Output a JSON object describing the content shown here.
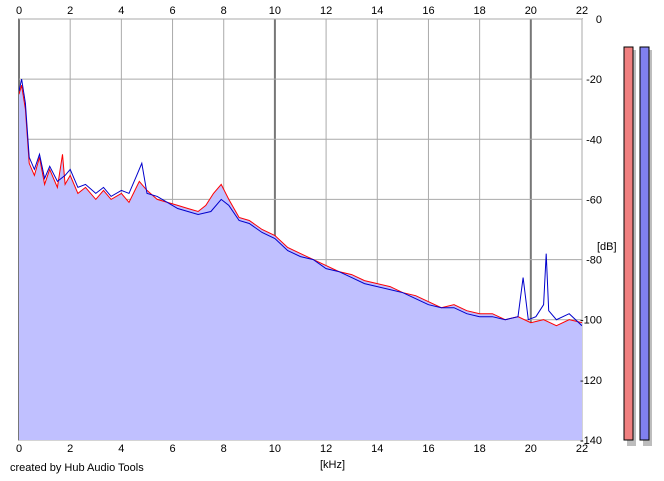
{
  "chart_data": {
    "type": "line",
    "xlabel": "[kHz]",
    "ylabel": "[dB]",
    "x_ticks": [
      "0",
      "2",
      "4",
      "6",
      "8",
      "10",
      "12",
      "14",
      "16",
      "18",
      "20",
      "22"
    ],
    "y_ticks": [
      "0",
      "-20",
      "-40",
      "-60",
      "-80",
      "-100",
      "-120",
      "-140"
    ],
    "xlim": [
      0,
      22
    ],
    "ylim": [
      -140,
      0
    ],
    "grid": true,
    "fill_color": "#c0c0ff",
    "series": [
      {
        "color": "#ff0000",
        "points": [
          [
            0,
            -25
          ],
          [
            0.1,
            -22
          ],
          [
            0.25,
            -30
          ],
          [
            0.4,
            -48
          ],
          [
            0.6,
            -52
          ],
          [
            0.8,
            -46
          ],
          [
            1,
            -55
          ],
          [
            1.2,
            -50
          ],
          [
            1.5,
            -56
          ],
          [
            1.7,
            -45
          ],
          [
            1.8,
            -55
          ],
          [
            2,
            -52
          ],
          [
            2.3,
            -58
          ],
          [
            2.6,
            -56
          ],
          [
            3,
            -60
          ],
          [
            3.3,
            -57
          ],
          [
            3.6,
            -60
          ],
          [
            4,
            -58
          ],
          [
            4.3,
            -61
          ],
          [
            4.7,
            -54
          ],
          [
            5,
            -57
          ],
          [
            5.4,
            -60
          ],
          [
            5.8,
            -61
          ],
          [
            6.2,
            -62
          ],
          [
            6.6,
            -63
          ],
          [
            7,
            -64
          ],
          [
            7.3,
            -62
          ],
          [
            7.6,
            -58
          ],
          [
            7.9,
            -55
          ],
          [
            8.2,
            -60
          ],
          [
            8.6,
            -66
          ],
          [
            9,
            -67
          ],
          [
            9.5,
            -70
          ],
          [
            10,
            -72
          ],
          [
            10.5,
            -76
          ],
          [
            11,
            -78
          ],
          [
            11.5,
            -80
          ],
          [
            12,
            -82
          ],
          [
            12.5,
            -84
          ],
          [
            13,
            -85
          ],
          [
            13.5,
            -87
          ],
          [
            14,
            -88
          ],
          [
            14.5,
            -89
          ],
          [
            15,
            -91
          ],
          [
            15.5,
            -92
          ],
          [
            16,
            -94
          ],
          [
            16.5,
            -96
          ],
          [
            17,
            -95
          ],
          [
            17.5,
            -97
          ],
          [
            18,
            -98
          ],
          [
            18.5,
            -98
          ],
          [
            19,
            -100
          ],
          [
            19.5,
            -99
          ],
          [
            20,
            -101
          ],
          [
            20.5,
            -100
          ],
          [
            21,
            -102
          ],
          [
            21.5,
            -100
          ],
          [
            22,
            -101
          ]
        ]
      },
      {
        "color": "#0000cc",
        "points": [
          [
            0,
            -24
          ],
          [
            0.1,
            -20
          ],
          [
            0.25,
            -28
          ],
          [
            0.4,
            -46
          ],
          [
            0.6,
            -50
          ],
          [
            0.8,
            -45
          ],
          [
            1,
            -53
          ],
          [
            1.2,
            -49
          ],
          [
            1.5,
            -54
          ],
          [
            1.8,
            -52
          ],
          [
            2,
            -50
          ],
          [
            2.3,
            -56
          ],
          [
            2.6,
            -55
          ],
          [
            3,
            -58
          ],
          [
            3.3,
            -56
          ],
          [
            3.6,
            -59
          ],
          [
            4,
            -57
          ],
          [
            4.3,
            -58
          ],
          [
            4.6,
            -52
          ],
          [
            4.8,
            -48
          ],
          [
            5,
            -58
          ],
          [
            5.4,
            -59
          ],
          [
            5.8,
            -61
          ],
          [
            6.2,
            -63
          ],
          [
            6.6,
            -64
          ],
          [
            7,
            -65
          ],
          [
            7.5,
            -64
          ],
          [
            7.9,
            -60
          ],
          [
            8.2,
            -62
          ],
          [
            8.6,
            -67
          ],
          [
            9,
            -68
          ],
          [
            9.5,
            -71
          ],
          [
            10,
            -73
          ],
          [
            10.5,
            -77
          ],
          [
            11,
            -79
          ],
          [
            11.5,
            -80
          ],
          [
            12,
            -83
          ],
          [
            12.5,
            -84
          ],
          [
            13,
            -86
          ],
          [
            13.5,
            -88
          ],
          [
            14,
            -89
          ],
          [
            14.5,
            -90
          ],
          [
            15,
            -91
          ],
          [
            15.5,
            -93
          ],
          [
            16,
            -95
          ],
          [
            16.5,
            -96
          ],
          [
            17,
            -96
          ],
          [
            17.5,
            -98
          ],
          [
            18,
            -99
          ],
          [
            18.5,
            -99
          ],
          [
            19,
            -100
          ],
          [
            19.5,
            -99
          ],
          [
            19.7,
            -86
          ],
          [
            19.9,
            -100
          ],
          [
            20.2,
            -99
          ],
          [
            20.5,
            -95
          ],
          [
            20.6,
            -78
          ],
          [
            20.7,
            -97
          ],
          [
            21,
            -100
          ],
          [
            21.5,
            -98
          ],
          [
            22,
            -102
          ]
        ]
      }
    ]
  },
  "meters": [
    {
      "color": "#f08080",
      "fill": 1.0
    },
    {
      "color": "#8080f0",
      "fill": 1.0
    }
  ],
  "credit": "created by Hub Audio Tools"
}
